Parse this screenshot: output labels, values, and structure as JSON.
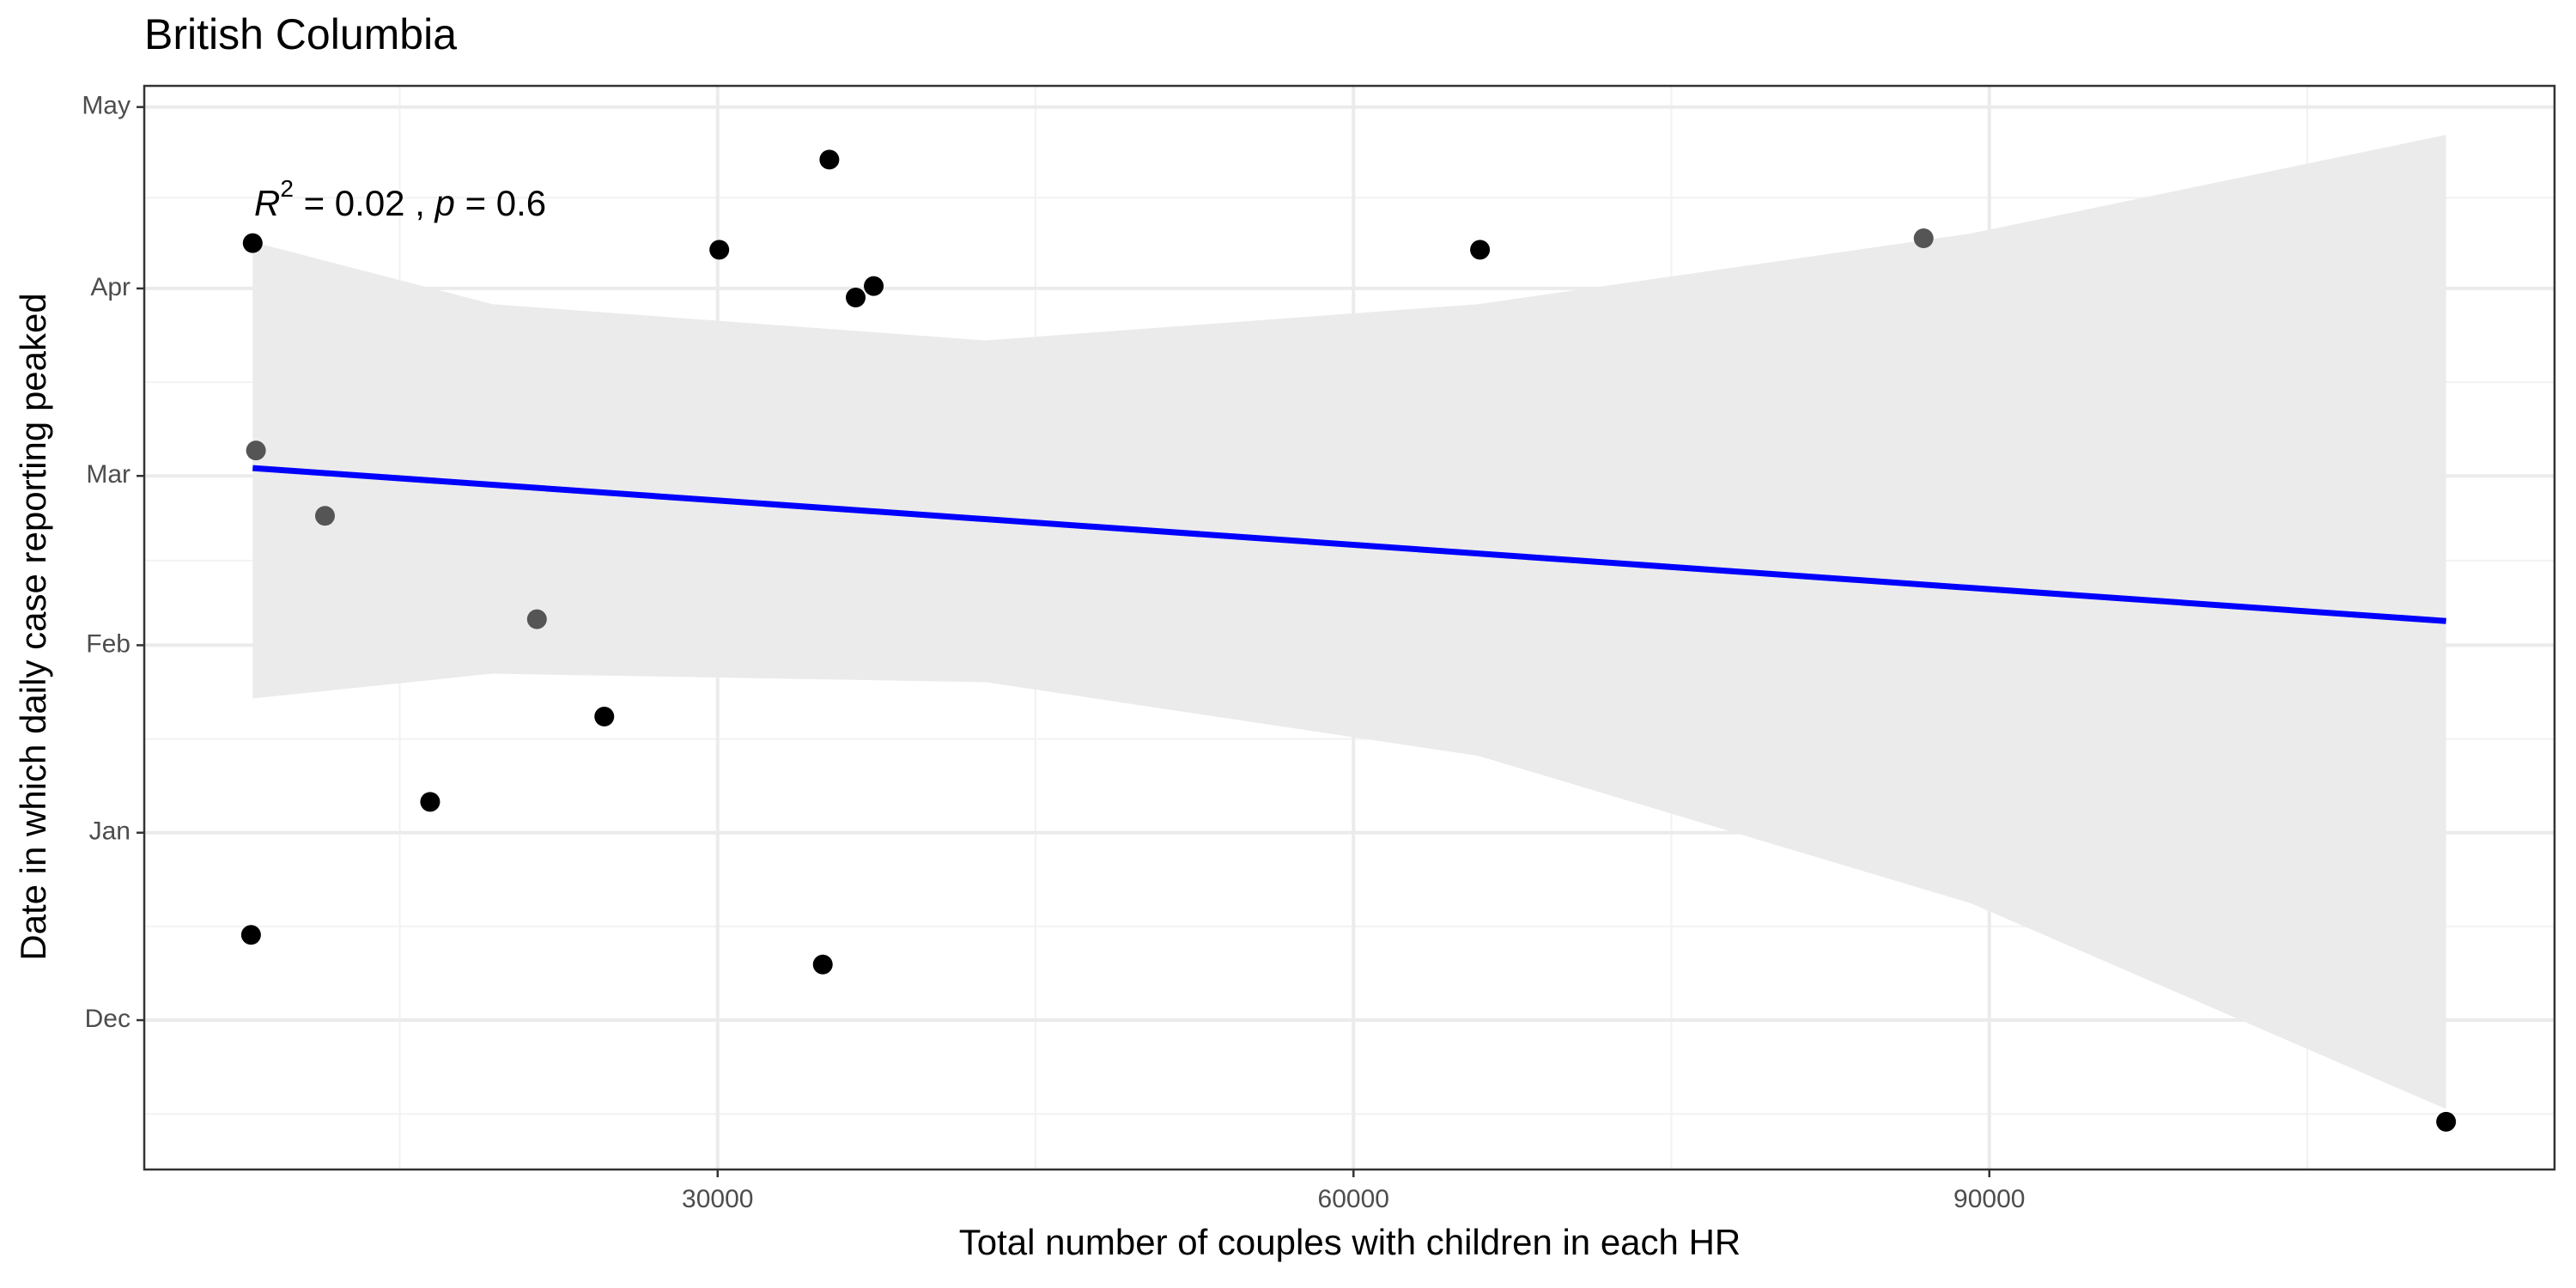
{
  "chart_data": {
    "type": "scatter",
    "title": "British Columbia",
    "x_label": "Total number of couples with children in each HR",
    "y_label": "Date in which daily case reporting peaked",
    "annotation": [
      "R",
      "2",
      " = 0.02 , ",
      "p",
      " = 0.6"
    ],
    "xlim": [
      2946,
      116667
    ],
    "xticks": [
      30000,
      60000,
      90000
    ],
    "ylim": [
      -24.7,
      154.5
    ],
    "yticks": [
      {
        "value": 0,
        "label": "Dec"
      },
      {
        "value": 31,
        "label": "Jan"
      },
      {
        "value": 62,
        "label": "Feb"
      },
      {
        "value": 90,
        "label": "Mar"
      },
      {
        "value": 121,
        "label": "Apr"
      },
      {
        "value": 151,
        "label": "May"
      }
    ],
    "grid": true,
    "series": [
      {
        "x": [
          8062,
          35271,
          30078,
          36512,
          37364,
          65969,
          86899,
          8217,
          11473,
          21473,
          24651,
          16434,
          7984,
          34961,
          111550
        ],
        "values": [
          128.5,
          142.3,
          127.4,
          119.5,
          121.4,
          127.4,
          129.3,
          94.2,
          83.4,
          66.3,
          50.2,
          36.1,
          14.1,
          9.2,
          -16.8
        ],
        "colors": [
          "#000000",
          "#000000",
          "#000000",
          "#000000",
          "#000000",
          "#000000",
          "#555555",
          "#555555",
          "#555555",
          "#555555",
          "#000000",
          "#000000",
          "#000000",
          "#000000",
          "#000000"
        ]
      }
    ],
    "fit": {
      "x": [
        8062,
        111550
      ],
      "values": [
        91.3,
        66.0
      ],
      "color": "#0000ff"
    },
    "band": {
      "x": [
        8062,
        19380,
        42636,
        65891,
        89147,
        111550
      ],
      "upper": [
        128.7,
        118.4,
        112.4,
        118.4,
        130.1,
        146.4
      ],
      "lower": [
        53.2,
        57.3,
        55.9,
        43.7,
        19.3,
        -14.7
      ],
      "color": "#ebebeb"
    }
  }
}
